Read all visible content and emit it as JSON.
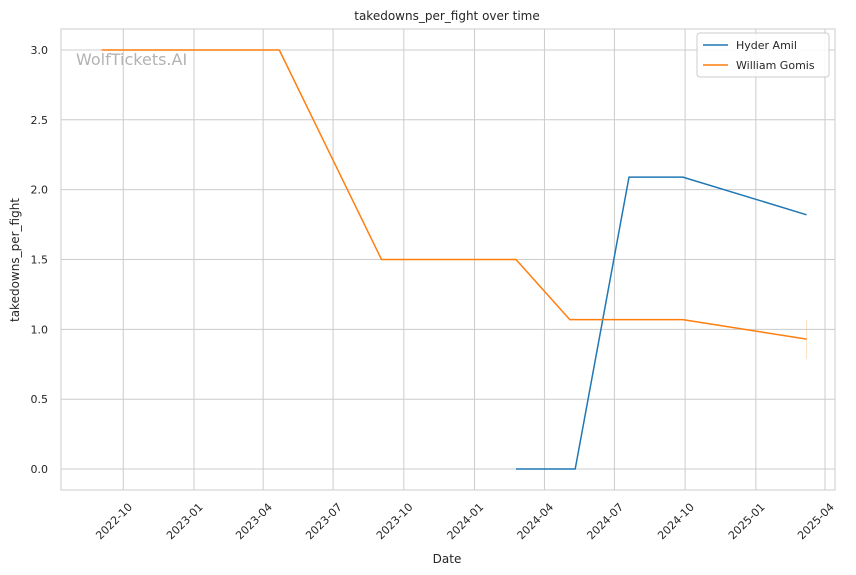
{
  "chart_data": {
    "type": "line",
    "title": "takedowns_per_fight over time",
    "xlabel": "Date",
    "ylabel": "takedowns_per_fight",
    "watermark": "WolfTickets.AI",
    "grid": true,
    "legend_position": "top-right",
    "x_type": "date",
    "xlim": [
      "2022-07-12",
      "2025-04-14"
    ],
    "ylim": [
      -0.15,
      3.15
    ],
    "x_ticks": [
      "2022-10-01",
      "2023-01-01",
      "2023-04-01",
      "2023-07-01",
      "2023-10-01",
      "2024-01-01",
      "2024-04-01",
      "2024-07-01",
      "2024-10-01",
      "2025-01-01",
      "2025-04-01"
    ],
    "x_tick_labels": [
      "2022-10",
      "2023-01",
      "2023-04",
      "2023-07",
      "2023-10",
      "2024-01",
      "2024-04",
      "2024-07",
      "2024-10",
      "2025-01",
      "2025-04"
    ],
    "y_ticks": [
      0.0,
      0.5,
      1.0,
      1.5,
      2.0,
      2.5,
      3.0
    ],
    "y_tick_labels": [
      "0.0",
      "0.5",
      "1.0",
      "1.5",
      "2.0",
      "2.5",
      "3.0"
    ],
    "series": [
      {
        "name": "Hyder Amil",
        "color": "#1f77b4",
        "x": [
          "2024-02-24",
          "2024-05-11",
          "2024-07-20",
          "2024-09-28",
          "2025-03-08"
        ],
        "y": [
          0.0,
          0.0,
          2.09,
          2.09,
          1.82
        ]
      },
      {
        "name": "William Gomis",
        "color": "#ff7f0e",
        "x": [
          "2022-09-03",
          "2023-04-22",
          "2023-09-02",
          "2024-02-24",
          "2024-05-04",
          "2024-09-28",
          "2025-03-08"
        ],
        "y": [
          3.0,
          3.0,
          1.5,
          1.5,
          1.07,
          1.07,
          0.93
        ]
      }
    ]
  }
}
